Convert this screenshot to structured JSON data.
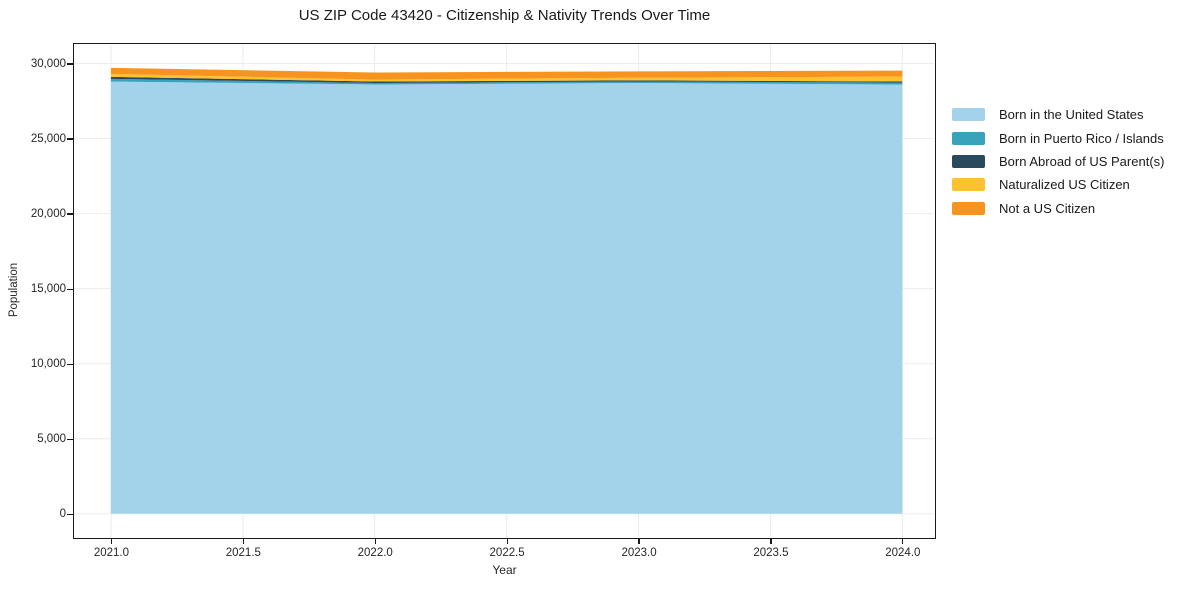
{
  "chart_data": {
    "type": "area",
    "stacked": true,
    "title": "US ZIP Code 43420 - Citizenship & Nativity Trends Over Time",
    "xlabel": "Year",
    "ylabel": "Population",
    "x": [
      2021,
      2022,
      2023,
      2024
    ],
    "series": [
      {
        "name": "Born in the United States",
        "color": "#a3d3ea",
        "values": [
          28800,
          28600,
          28700,
          28600
        ]
      },
      {
        "name": "Born in Puerto Rico / Islands",
        "color": "#39a3bc",
        "values": [
          180,
          100,
          100,
          130
        ]
      },
      {
        "name": "Born Abroad of US Parent(s)",
        "color": "#29495c",
        "values": [
          130,
          100,
          80,
          70
        ]
      },
      {
        "name": "Naturalized US Citizen",
        "color": "#fcc32e",
        "values": [
          200,
          130,
          170,
          330
        ]
      },
      {
        "name": "Not a US Citizen",
        "color": "#f79420",
        "values": [
          400,
          470,
          430,
          400
        ]
      }
    ],
    "xlim": [
      2020.86,
      2024.12
    ],
    "ylim": [
      -1550,
      31300
    ],
    "x_ticks": [
      {
        "value": 2021.0,
        "label": "2021.0"
      },
      {
        "value": 2021.5,
        "label": "2021.5"
      },
      {
        "value": 2022.0,
        "label": "2022.0"
      },
      {
        "value": 2022.5,
        "label": "2022.5"
      },
      {
        "value": 2023.0,
        "label": "2023.0"
      },
      {
        "value": 2023.5,
        "label": "2023.5"
      },
      {
        "value": 2024.0,
        "label": "2024.0"
      }
    ],
    "y_ticks": [
      {
        "value": 0,
        "label": "0"
      },
      {
        "value": 5000,
        "label": "5,000"
      },
      {
        "value": 10000,
        "label": "10,000"
      },
      {
        "value": 15000,
        "label": "15,000"
      },
      {
        "value": 20000,
        "label": "20,000"
      },
      {
        "value": 25000,
        "label": "25,000"
      },
      {
        "value": 30000,
        "label": "30,000"
      }
    ],
    "grid": true,
    "grid_color": "#ececec",
    "legend_position": "right-outside"
  }
}
